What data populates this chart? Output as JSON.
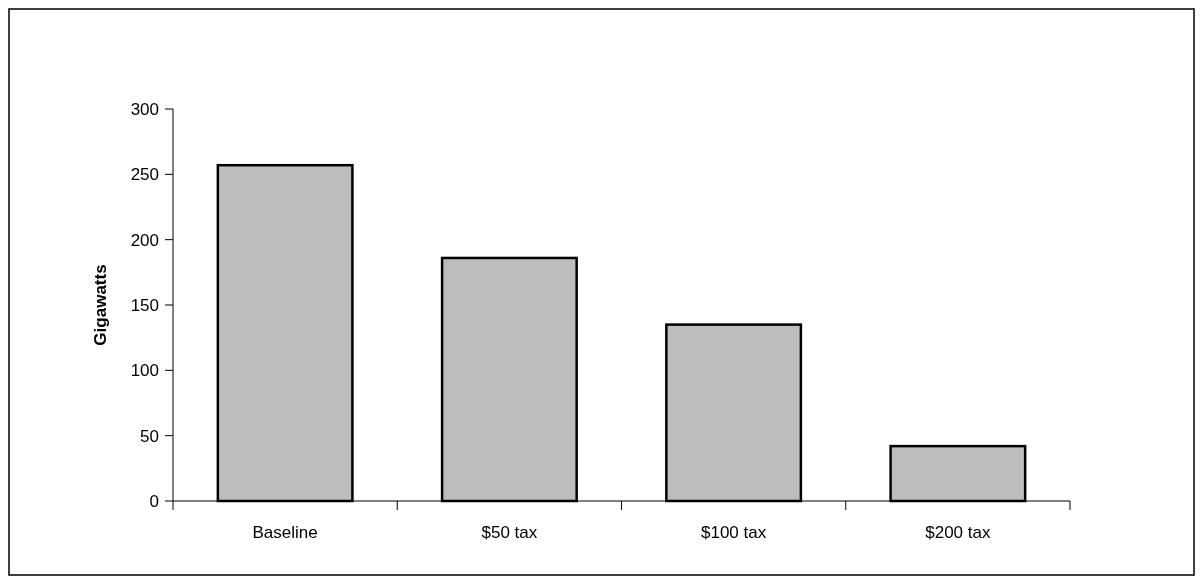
{
  "chart_data": {
    "type": "bar",
    "ylabel": "Gigawatts",
    "categories": [
      "Baseline",
      "$50 tax",
      "$100 tax",
      "$200 tax"
    ],
    "values": [
      257,
      186,
      135,
      42
    ],
    "color": "#bdbdbd",
    "ylim": [
      0,
      300
    ],
    "yticks": [
      0,
      50,
      100,
      150,
      200,
      250,
      300
    ],
    "grid": false
  }
}
